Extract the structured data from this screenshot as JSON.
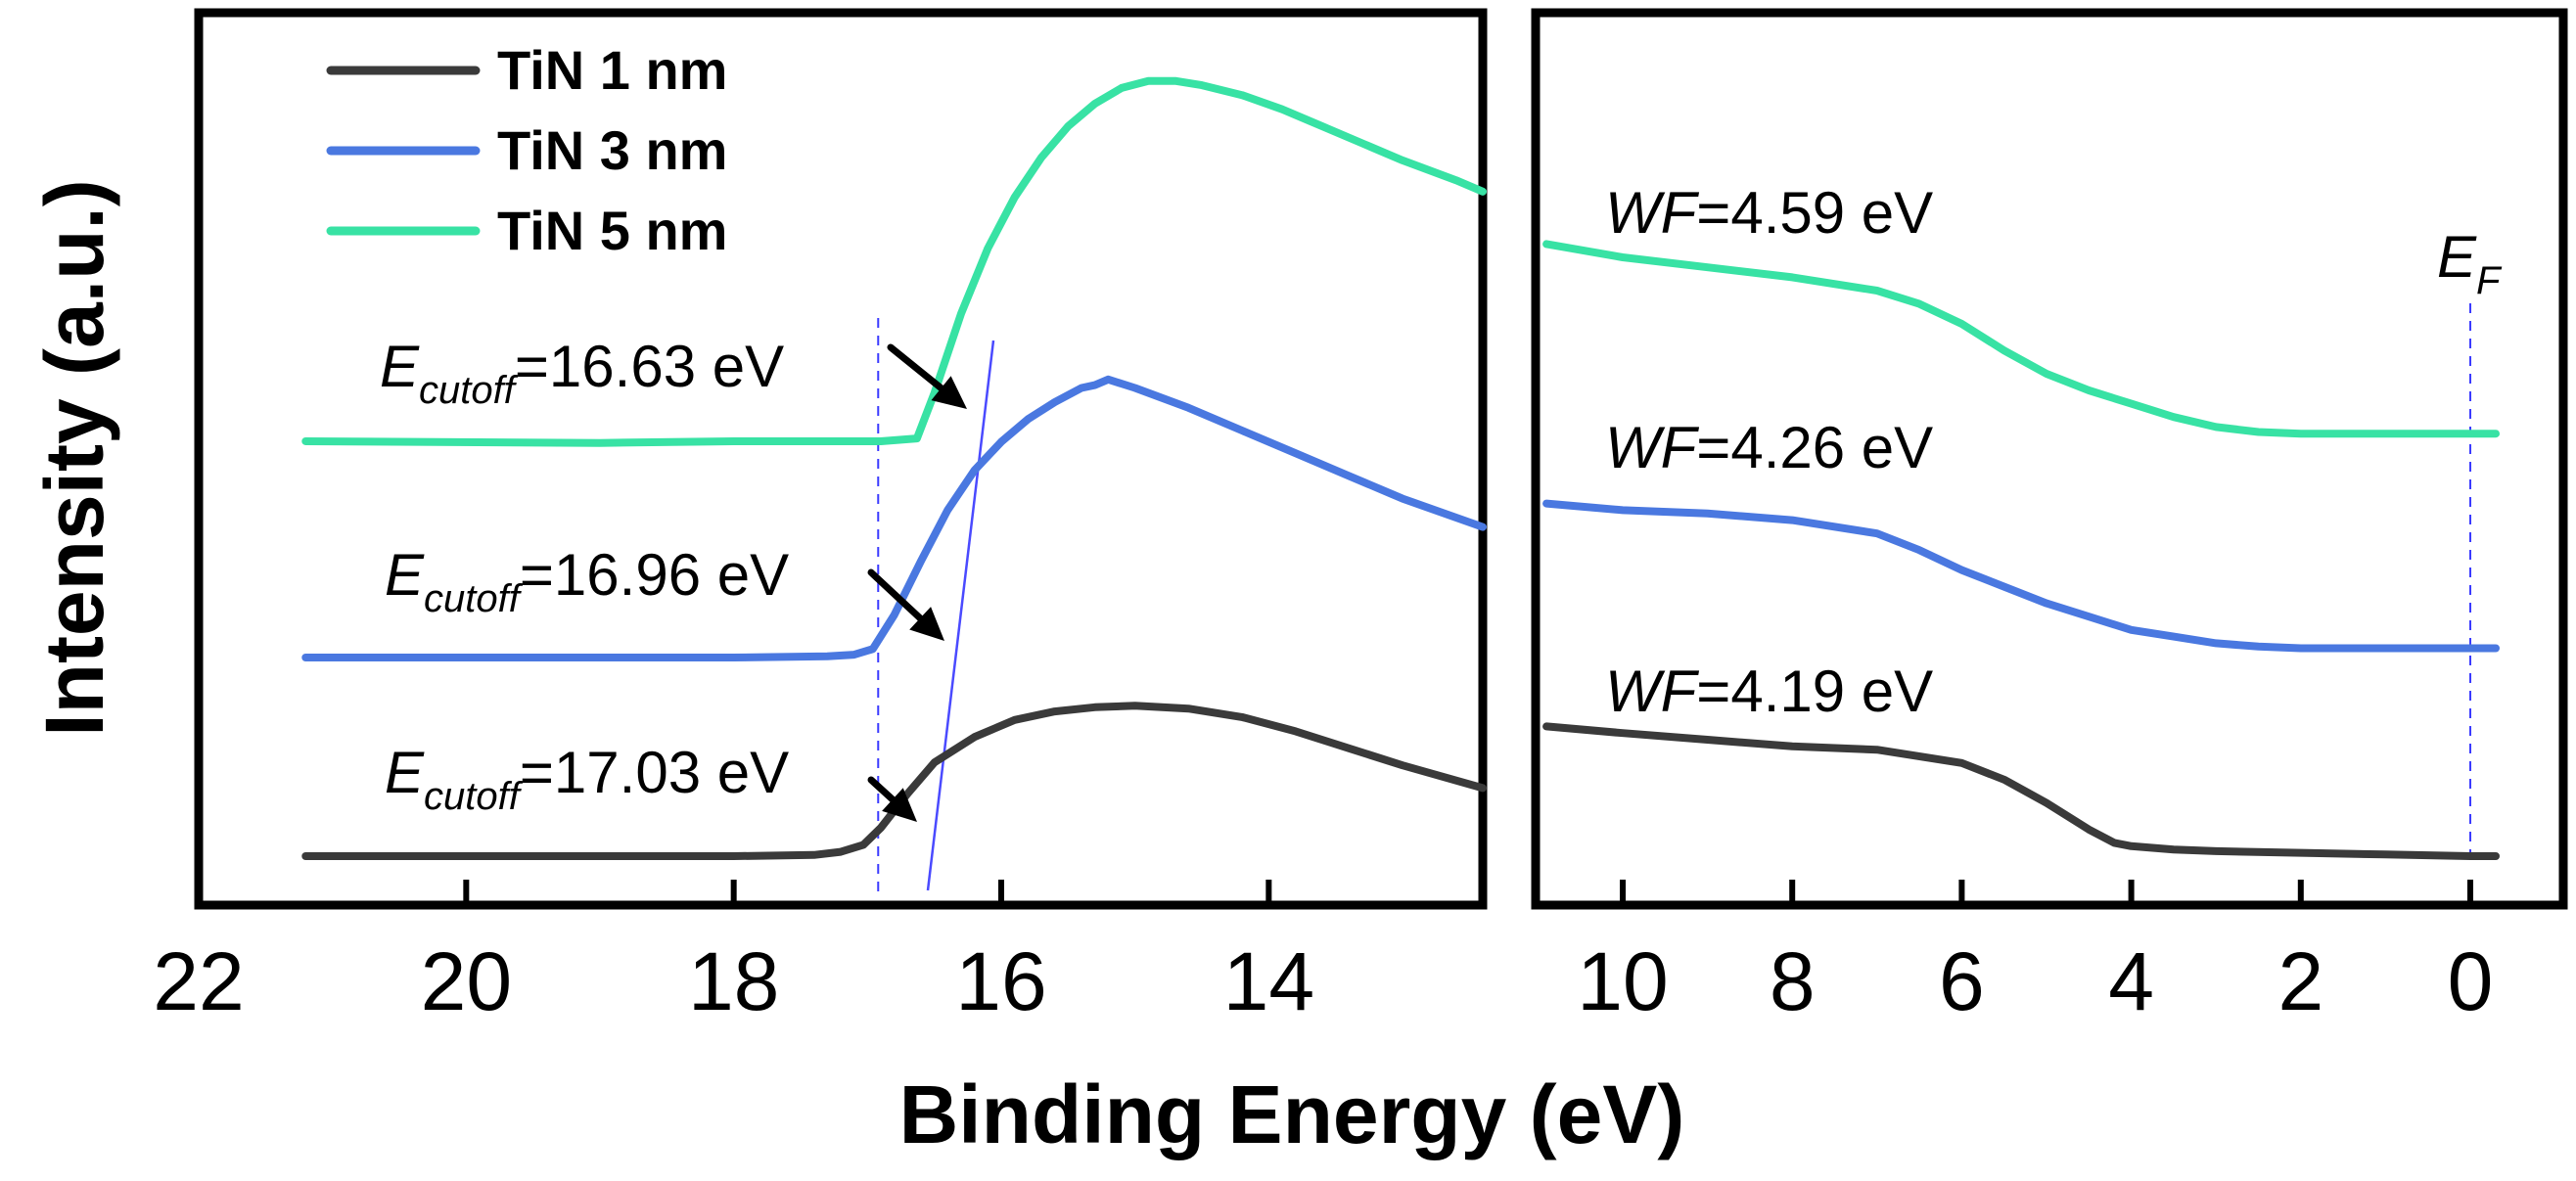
{
  "chart_data": {
    "type": "line",
    "x_axis_title": "Binding Energy (eV)",
    "y_axis_title": "Intensity (a.u.)",
    "legend": {
      "placement": "top-left",
      "entries": [
        {
          "name": "TiN 1 nm",
          "color": "#3a3a3a"
        },
        {
          "name": "TiN 3 nm",
          "color": "#4a78e0"
        },
        {
          "name": "TiN 5 nm",
          "color": "#38e2a4"
        }
      ]
    },
    "panels": [
      {
        "id": "cutoff",
        "xlim": [
          22,
          12.4
        ],
        "x_ticks": [
          22,
          20,
          18,
          16,
          14
        ],
        "series": [
          {
            "name": "TiN 1 nm",
            "color": "#3a3a3a",
            "x": [
              21.2,
              19.0,
              18.0,
              17.4,
              17.2,
              17.03,
              16.9,
              16.7,
              16.5,
              16.2,
              15.9,
              15.6,
              15.3,
              15.0,
              14.6,
              14.2,
              13.8,
              13.4,
              13.0,
              12.4
            ],
            "y": [
              0.0,
              0.0,
              0.0,
              0.004,
              0.015,
              0.04,
              0.1,
              0.22,
              0.33,
              0.42,
              0.48,
              0.51,
              0.525,
              0.53,
              0.52,
              0.49,
              0.44,
              0.38,
              0.32,
              0.24
            ]
          },
          {
            "name": "TiN 3 nm",
            "color": "#4a78e0",
            "x": [
              21.2,
              19.0,
              18.0,
              17.3,
              17.1,
              16.96,
              16.8,
              16.6,
              16.4,
              16.2,
              16.0,
              15.8,
              15.6,
              15.4,
              15.3,
              15.2,
              15.0,
              14.6,
              14.2,
              13.8,
              13.4,
              13.0,
              12.4
            ],
            "y": [
              0.0,
              0.0,
              0.0,
              0.004,
              0.01,
              0.03,
              0.15,
              0.34,
              0.52,
              0.66,
              0.76,
              0.84,
              0.9,
              0.95,
              0.96,
              0.98,
              0.95,
              0.88,
              0.8,
              0.72,
              0.64,
              0.56,
              0.46
            ]
          },
          {
            "name": "TiN 5 nm",
            "color": "#38e2a4",
            "x": [
              21.2,
              19.0,
              18.0,
              17.2,
              16.9,
              16.63,
              16.5,
              16.3,
              16.1,
              15.9,
              15.7,
              15.5,
              15.3,
              15.1,
              14.9,
              14.7,
              14.5,
              14.2,
              13.9,
              13.6,
              13.3,
              13.0,
              12.6,
              12.4
            ],
            "y": [
              0.0,
              -0.006,
              0.0,
              0.0,
              0.0,
              0.01,
              0.17,
              0.45,
              0.68,
              0.86,
              1.0,
              1.11,
              1.19,
              1.245,
              1.27,
              1.27,
              1.255,
              1.22,
              1.17,
              1.11,
              1.05,
              0.99,
              0.92,
              0.88
            ]
          }
        ],
        "annotations": [
          {
            "name": "TiN 5 nm",
            "base": "E",
            "subscript": "cutoff",
            "rest": "=16.63 eV",
            "x": 16.63
          },
          {
            "name": "TiN 3 nm",
            "base": "E",
            "subscript": "cutoff",
            "rest": "=16.96 eV",
            "x": 16.96
          },
          {
            "name": "TiN 1 nm",
            "base": "E",
            "subscript": "cutoff",
            "rest": "=17.03 eV",
            "x": 17.03
          }
        ],
        "guide_x": 16.92
      },
      {
        "id": "valence",
        "xlim": [
          11.0,
          -0.35
        ],
        "x_ticks": [
          10,
          8,
          6,
          4,
          2,
          0
        ],
        "series": [
          {
            "name": "TiN 1 nm",
            "color": "#3a3a3a",
            "x": [
              10.9,
              10.0,
              9.0,
              8.0,
              7.0,
              6.0,
              5.5,
              5.0,
              4.5,
              4.2,
              4.0,
              3.5,
              3.0,
              2.0,
              1.0,
              0.0,
              -0.3
            ],
            "y": [
              0.39,
              0.37,
              0.35,
              0.33,
              0.32,
              0.28,
              0.23,
              0.16,
              0.08,
              0.04,
              0.03,
              0.02,
              0.015,
              0.01,
              0.005,
              0.0,
              0.0
            ]
          },
          {
            "name": "TiN 3 nm",
            "color": "#4a78e0",
            "x": [
              10.9,
              10.0,
              9.0,
              8.0,
              7.0,
              6.5,
              6.0,
              5.5,
              5.0,
              4.5,
              4.0,
              3.5,
              3.0,
              2.5,
              2.0,
              1.0,
              0.0,
              -0.3
            ],
            "y": [
              1.06,
              1.04,
              1.03,
              1.01,
              0.97,
              0.92,
              0.86,
              0.81,
              0.76,
              0.72,
              0.68,
              0.66,
              0.64,
              0.63,
              0.625,
              0.625,
              0.625,
              0.625
            ]
          },
          {
            "name": "TiN 5 nm",
            "color": "#38e2a4",
            "x": [
              10.9,
              10.0,
              9.0,
              8.0,
              7.0,
              6.5,
              6.0,
              5.5,
              5.0,
              4.5,
              4.0,
              3.5,
              3.0,
              2.5,
              2.0,
              1.0,
              0.0,
              -0.3
            ],
            "y": [
              1.84,
              1.8,
              1.77,
              1.74,
              1.7,
              1.66,
              1.6,
              1.52,
              1.45,
              1.4,
              1.36,
              1.32,
              1.29,
              1.275,
              1.27,
              1.27,
              1.27,
              1.27
            ]
          }
        ],
        "annotations": [
          {
            "name": "TiN 5 nm",
            "base": "WF",
            "subscript": "",
            "rest": "=4.59 eV"
          },
          {
            "name": "TiN 3 nm",
            "base": "WF",
            "subscript": "",
            "rest": "=4.26 eV"
          },
          {
            "name": "TiN 1 nm",
            "base": "WF",
            "subscript": "",
            "rest": "=4.19 eV"
          }
        ],
        "fermi": {
          "base": "E",
          "subscript": "F",
          "x": 0
        }
      }
    ]
  }
}
